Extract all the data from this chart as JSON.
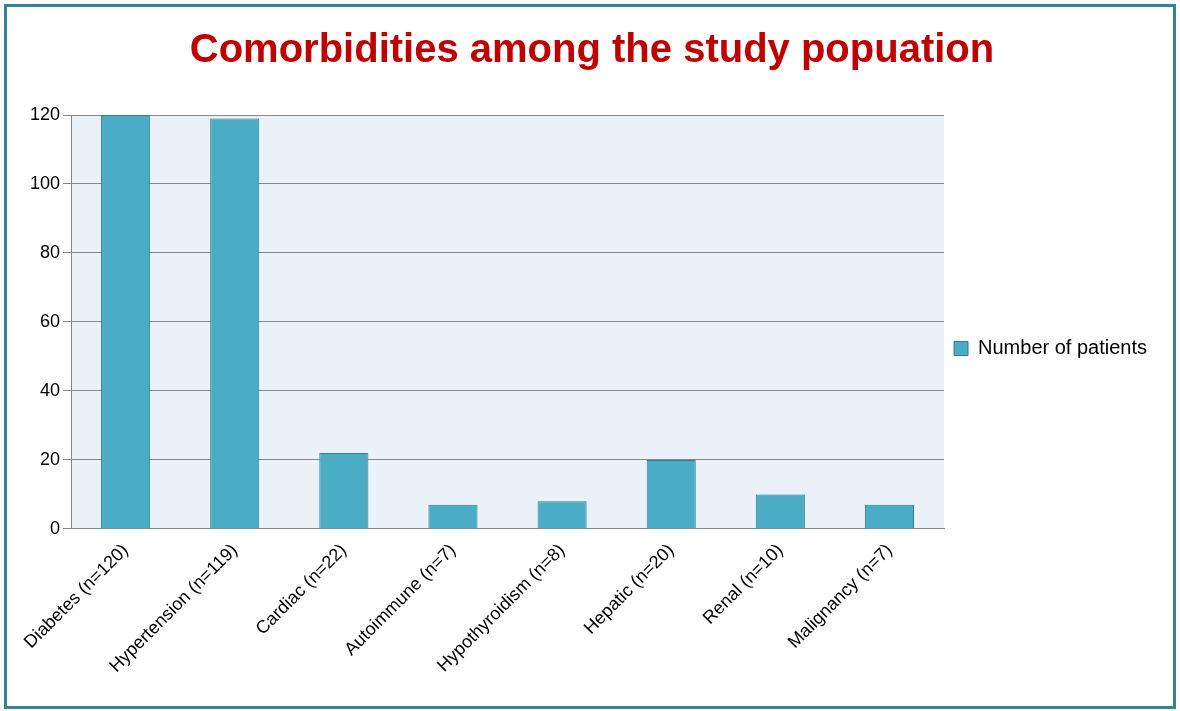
{
  "chart_data": {
    "type": "bar",
    "title": "Comorbidities among the study popuation",
    "categories": [
      "Diabetes (n=120)",
      "Hypertension (n=119)",
      "Cardiac (n=22)",
      "Autoimmune (n=7)",
      "Hypothyroidism (n=8)",
      "Hepatic (n=20)",
      "Renal (n=10)",
      "Malignancy (n=7)"
    ],
    "series": [
      {
        "name": "Number of patients",
        "color": "#4bacc6",
        "values": [
          120,
          119,
          22,
          7,
          8,
          20,
          10,
          7
        ]
      }
    ],
    "ylim": [
      0,
      120
    ],
    "yticks": [
      0,
      20,
      40,
      60,
      80,
      100,
      120
    ],
    "grid": "y",
    "legend": "right"
  }
}
